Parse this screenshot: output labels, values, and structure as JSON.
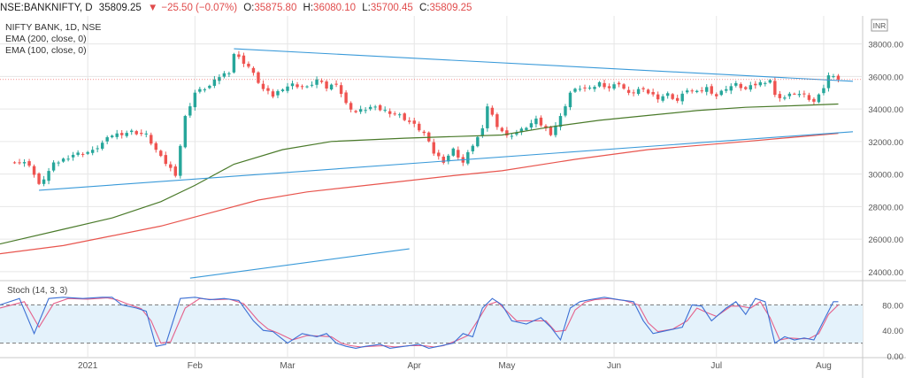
{
  "header": {
    "symbol": "NSE:BANKNIFTY, D",
    "last": "35809.25",
    "change_arrow": "▼",
    "change": "−25.50 (−0.07%)",
    "o_label": "O:",
    "o_value": "35875.80",
    "h_label": "H:",
    "h_value": "36080.10",
    "l_label": "L:",
    "l_value": "35700.45",
    "c_label": "C:",
    "c_value": "35809.25"
  },
  "legend": {
    "title": "NIFTY BANK, 1D, NSE",
    "ema200": "EMA (200, close, 0)",
    "ema100": "EMA (100, close, 0)"
  },
  "currency_label": "INR",
  "colors": {
    "up": "#26a69a",
    "down": "#ef5350",
    "ema200": "#4a7a2a",
    "ema100": "#e8554e",
    "trendline": "#3a9ad9",
    "stoch_k": "#3b6fd4",
    "stoch_d": "#e5608a",
    "stoch_band": "#e4f2fb",
    "grid": "#e6e6e6",
    "axis_text": "#555555"
  },
  "chart_data": [
    {
      "type": "candlestick",
      "title": "NIFTY BANK, 1D, NSE",
      "xlabel": "",
      "ylabel": "",
      "y_axis_ticks": [
        24000,
        26000,
        28000,
        30000,
        32000,
        34000,
        36000,
        38000
      ],
      "y_axis_labels": [
        "24000.00",
        "26000.00",
        "28000.00",
        "30000.00",
        "32000.00",
        "34000.00",
        "36000.00",
        "38000.00"
      ],
      "ylim": [
        23500,
        39500
      ],
      "x_axis_labels": [
        "2021",
        "Feb",
        "Mar",
        "Apr",
        "May",
        "Jun",
        "Jul",
        "Aug"
      ],
      "x_axis_positions": [
        15,
        37,
        56,
        82,
        101,
        123,
        144,
        166
      ],
      "x_range": [
        -3,
        174
      ],
      "grid": true,
      "legend_position": "top-left",
      "close_series_keypoints": [
        [
          0,
          30800
        ],
        [
          3,
          30600
        ],
        [
          5,
          29300
        ],
        [
          8,
          30600
        ],
        [
          12,
          31200
        ],
        [
          16,
          31400
        ],
        [
          20,
          32400
        ],
        [
          24,
          32600
        ],
        [
          27,
          32400
        ],
        [
          30,
          31000
        ],
        [
          33,
          30000
        ],
        [
          35,
          33500
        ],
        [
          37,
          35000
        ],
        [
          40,
          35400
        ],
        [
          42,
          36000
        ],
        [
          44,
          36300
        ],
        [
          45,
          37400
        ],
        [
          48,
          36600
        ],
        [
          51,
          35200
        ],
        [
          53,
          34800
        ],
        [
          55,
          35300
        ],
        [
          57,
          35500
        ],
        [
          60,
          35300
        ],
        [
          62,
          35800
        ],
        [
          64,
          35300
        ],
        [
          66,
          35600
        ],
        [
          68,
          34300
        ],
        [
          70,
          33800
        ],
        [
          73,
          34100
        ],
        [
          76,
          33900
        ],
        [
          79,
          33600
        ],
        [
          82,
          33000
        ],
        [
          84,
          32500
        ],
        [
          86,
          31300
        ],
        [
          88,
          30800
        ],
        [
          90,
          31500
        ],
        [
          92,
          30700
        ],
        [
          94,
          31800
        ],
        [
          96,
          32700
        ],
        [
          97,
          34200
        ],
        [
          99,
          33000
        ],
        [
          101,
          32300
        ],
        [
          104,
          32700
        ],
        [
          107,
          33300
        ],
        [
          110,
          32500
        ],
        [
          112,
          33500
        ],
        [
          114,
          35000
        ],
        [
          116,
          35300
        ],
        [
          118,
          35200
        ],
        [
          120,
          35600
        ],
        [
          122,
          35300
        ],
        [
          124,
          35600
        ],
        [
          126,
          34900
        ],
        [
          128,
          35200
        ],
        [
          130,
          35000
        ],
        [
          132,
          34700
        ],
        [
          134,
          34900
        ],
        [
          136,
          34500
        ],
        [
          138,
          35200
        ],
        [
          140,
          35000
        ],
        [
          142,
          35300
        ],
        [
          144,
          34800
        ],
        [
          146,
          35300
        ],
        [
          148,
          35500
        ],
        [
          150,
          35200
        ],
        [
          152,
          35500
        ],
        [
          154,
          35700
        ],
        [
          155,
          35800
        ],
        [
          156,
          34800
        ],
        [
          158,
          34700
        ],
        [
          160,
          35000
        ],
        [
          162,
          34800
        ],
        [
          164,
          34400
        ],
        [
          165,
          35000
        ],
        [
          166,
          35300
        ],
        [
          167,
          36000
        ],
        [
          168,
          36100
        ],
        [
          169,
          35809.25
        ]
      ],
      "ema200_keypoints": [
        [
          -3,
          25700
        ],
        [
          10,
          26600
        ],
        [
          20,
          27300
        ],
        [
          30,
          28300
        ],
        [
          37,
          29300
        ],
        [
          45,
          30600
        ],
        [
          55,
          31500
        ],
        [
          65,
          32000
        ],
        [
          80,
          32200
        ],
        [
          90,
          32300
        ],
        [
          100,
          32400
        ],
        [
          110,
          32900
        ],
        [
          120,
          33300
        ],
        [
          130,
          33600
        ],
        [
          140,
          33900
        ],
        [
          150,
          34100
        ],
        [
          160,
          34200
        ],
        [
          169,
          34300
        ]
      ],
      "ema100_keypoints": [
        [
          -3,
          25100
        ],
        [
          10,
          25600
        ],
        [
          20,
          26200
        ],
        [
          30,
          26800
        ],
        [
          40,
          27600
        ],
        [
          50,
          28400
        ],
        [
          60,
          28900
        ],
        [
          75,
          29400
        ],
        [
          90,
          29900
        ],
        [
          100,
          30200
        ],
        [
          115,
          30900
        ],
        [
          130,
          31500
        ],
        [
          150,
          32000
        ],
        [
          169,
          32500
        ]
      ],
      "trendlines": [
        {
          "from": [
            45,
            37700
          ],
          "to": [
            172,
            35700
          ]
        },
        {
          "from": [
            5,
            29000
          ],
          "to": [
            172,
            32600
          ]
        },
        {
          "from": [
            36,
            23600
          ],
          "to": [
            81,
            25400
          ]
        }
      ]
    },
    {
      "type": "line",
      "title": "Stoch (14, 3, 3)",
      "ylim": [
        0,
        100
      ],
      "y_axis_ticks": [
        0,
        40,
        80
      ],
      "y_axis_labels": [
        "0.00",
        "40.00",
        "80.00"
      ],
      "band": [
        20,
        80
      ],
      "grid": true,
      "k_keypoints": [
        [
          -3,
          80
        ],
        [
          1,
          90
        ],
        [
          4,
          35
        ],
        [
          7,
          90
        ],
        [
          10,
          92
        ],
        [
          14,
          90
        ],
        [
          18,
          92
        ],
        [
          20,
          92
        ],
        [
          22,
          80
        ],
        [
          25,
          75
        ],
        [
          27,
          70
        ],
        [
          29,
          15
        ],
        [
          31,
          18
        ],
        [
          34,
          90
        ],
        [
          37,
          92
        ],
        [
          40,
          88
        ],
        [
          43,
          90
        ],
        [
          46,
          87
        ],
        [
          49,
          55
        ],
        [
          51,
          40
        ],
        [
          53,
          38
        ],
        [
          56,
          20
        ],
        [
          59,
          35
        ],
        [
          62,
          30
        ],
        [
          64,
          35
        ],
        [
          66,
          20
        ],
        [
          68,
          15
        ],
        [
          70,
          12
        ],
        [
          72,
          15
        ],
        [
          75,
          18
        ],
        [
          77,
          12
        ],
        [
          80,
          15
        ],
        [
          83,
          18
        ],
        [
          85,
          12
        ],
        [
          87,
          15
        ],
        [
          90,
          20
        ],
        [
          92,
          35
        ],
        [
          94,
          30
        ],
        [
          96,
          75
        ],
        [
          98,
          90
        ],
        [
          100,
          80
        ],
        [
          102,
          55
        ],
        [
          105,
          50
        ],
        [
          108,
          60
        ],
        [
          110,
          45
        ],
        [
          112,
          25
        ],
        [
          114,
          75
        ],
        [
          116,
          85
        ],
        [
          118,
          88
        ],
        [
          121,
          92
        ],
        [
          124,
          88
        ],
        [
          127,
          85
        ],
        [
          129,
          55
        ],
        [
          131,
          35
        ],
        [
          134,
          40
        ],
        [
          137,
          45
        ],
        [
          139,
          80
        ],
        [
          141,
          78
        ],
        [
          143,
          55
        ],
        [
          146,
          75
        ],
        [
          148,
          85
        ],
        [
          150,
          65
        ],
        [
          152,
          90
        ],
        [
          154,
          85
        ],
        [
          156,
          20
        ],
        [
          158,
          30
        ],
        [
          160,
          25
        ],
        [
          162,
          28
        ],
        [
          164,
          25
        ],
        [
          166,
          55
        ],
        [
          168,
          85
        ],
        [
          169,
          85
        ]
      ],
      "d_keypoints": [
        [
          -3,
          75
        ],
        [
          2,
          85
        ],
        [
          5,
          45
        ],
        [
          8,
          82
        ],
        [
          11,
          90
        ],
        [
          15,
          89
        ],
        [
          19,
          91
        ],
        [
          21,
          88
        ],
        [
          23,
          82
        ],
        [
          26,
          74
        ],
        [
          28,
          55
        ],
        [
          30,
          20
        ],
        [
          32,
          22
        ],
        [
          35,
          75
        ],
        [
          38,
          90
        ],
        [
          41,
          88
        ],
        [
          44,
          89
        ],
        [
          47,
          82
        ],
        [
          50,
          55
        ],
        [
          52,
          42
        ],
        [
          54,
          36
        ],
        [
          57,
          25
        ],
        [
          60,
          32
        ],
        [
          63,
          31
        ],
        [
          65,
          30
        ],
        [
          67,
          20
        ],
        [
          69,
          16
        ],
        [
          71,
          14
        ],
        [
          73,
          15
        ],
        [
          76,
          16
        ],
        [
          78,
          14
        ],
        [
          81,
          16
        ],
        [
          84,
          16
        ],
        [
          86,
          14
        ],
        [
          88,
          16
        ],
        [
          91,
          25
        ],
        [
          93,
          32
        ],
        [
          95,
          55
        ],
        [
          97,
          80
        ],
        [
          99,
          85
        ],
        [
          101,
          70
        ],
        [
          103,
          55
        ],
        [
          106,
          55
        ],
        [
          109,
          55
        ],
        [
          111,
          38
        ],
        [
          113,
          40
        ],
        [
          115,
          72
        ],
        [
          117,
          84
        ],
        [
          119,
          88
        ],
        [
          122,
          90
        ],
        [
          125,
          87
        ],
        [
          128,
          80
        ],
        [
          130,
          52
        ],
        [
          132,
          38
        ],
        [
          135,
          42
        ],
        [
          138,
          55
        ],
        [
          140,
          75
        ],
        [
          142,
          68
        ],
        [
          144,
          62
        ],
        [
          147,
          78
        ],
        [
          149,
          78
        ],
        [
          151,
          75
        ],
        [
          153,
          85
        ],
        [
          155,
          60
        ],
        [
          157,
          25
        ],
        [
          159,
          28
        ],
        [
          161,
          27
        ],
        [
          163,
          27
        ],
        [
          165,
          35
        ],
        [
          167,
          65
        ],
        [
          169,
          80
        ]
      ]
    }
  ]
}
